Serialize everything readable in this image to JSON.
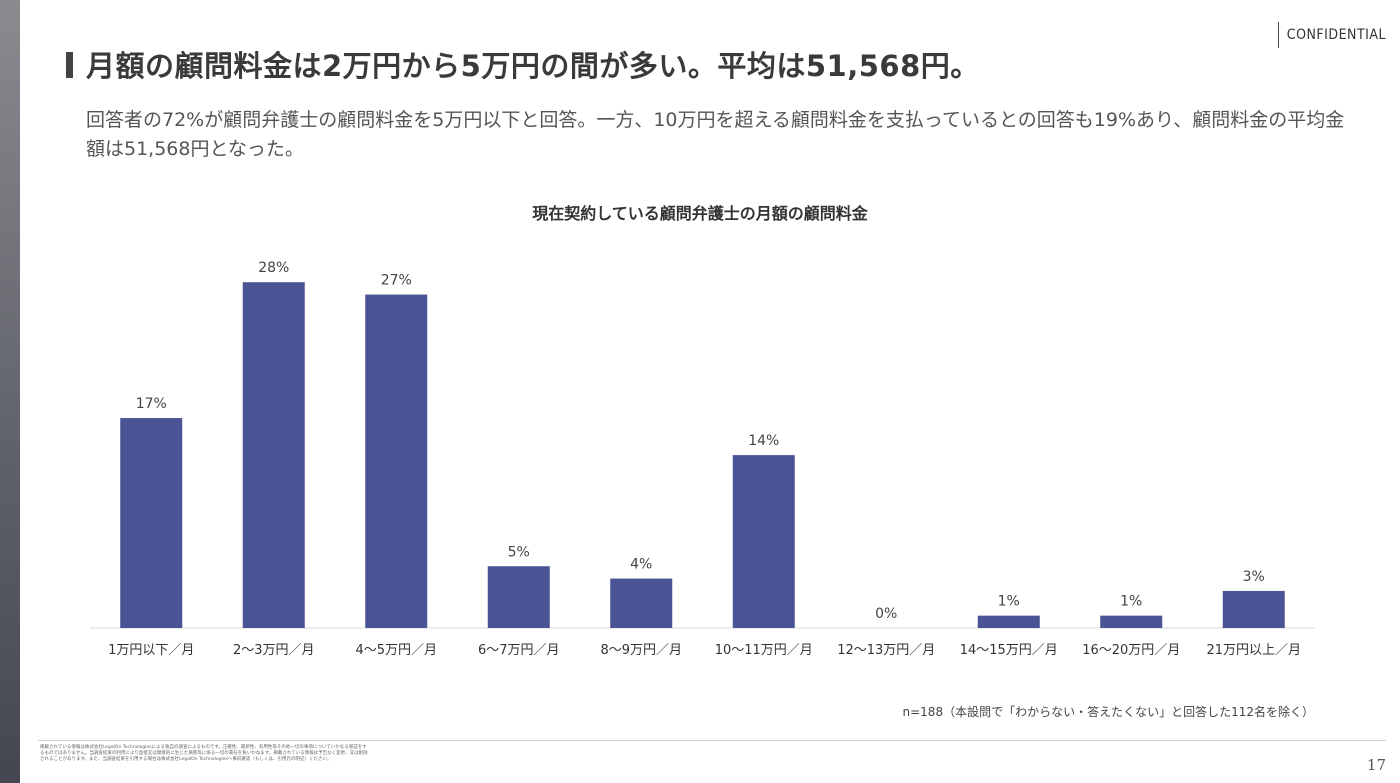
{
  "header": {
    "confidential_label": "CONFIDENTIAL",
    "title": "月額の顧問料金は2万円から5万円の間が多い。平均は51,568円。"
  },
  "lead": {
    "text": "回答者の72%が顧問弁護士の顧問料金を5万円以下と回答。一方、10万円を超える顧問料金を支払っているとの回答も19%あり、顧問料金の平均金額は51,568円となった。"
  },
  "chart_data": {
    "type": "bar",
    "title": "現在契約している顧問弁護士の月額の顧問料金",
    "categories": [
      "1万円以下／月",
      "2〜3万円／月",
      "4〜5万円／月",
      "6〜7万円／月",
      "8〜9万円／月",
      "10〜11万円／月",
      "12〜13万円／月",
      "14〜15万円／月",
      "16〜20万円／月",
      "21万円以上／月"
    ],
    "values": [
      17,
      28,
      27,
      5,
      4,
      14,
      0,
      1,
      1,
      3
    ],
    "value_suffix": "%",
    "ylim": [
      0,
      30
    ],
    "grid": false,
    "legend": "none",
    "bar_color": "#4a5494"
  },
  "note": {
    "text": "n=188（本設問で「わからない・答えたくない」と回答した112名を除く）"
  },
  "footer": {
    "disclaimer": "掲載されている情報は株式会社LegalOn Technologiesによる独自の調査によるものです。正確性、最新性、有用性等その他一切の事項についていかなる保証をするものではありません。当調査結果の利用により直接又は間接的に生じた損害等に係る一切の責任を負いかねます。掲載されている情報は予告なく変更、又は削除されることがあります。また、当調査結果を引用する場合は株式会社LegalOn Technologiesへ事前確認（もしくは、引用元の明記）ください。",
    "page_number": "17"
  }
}
